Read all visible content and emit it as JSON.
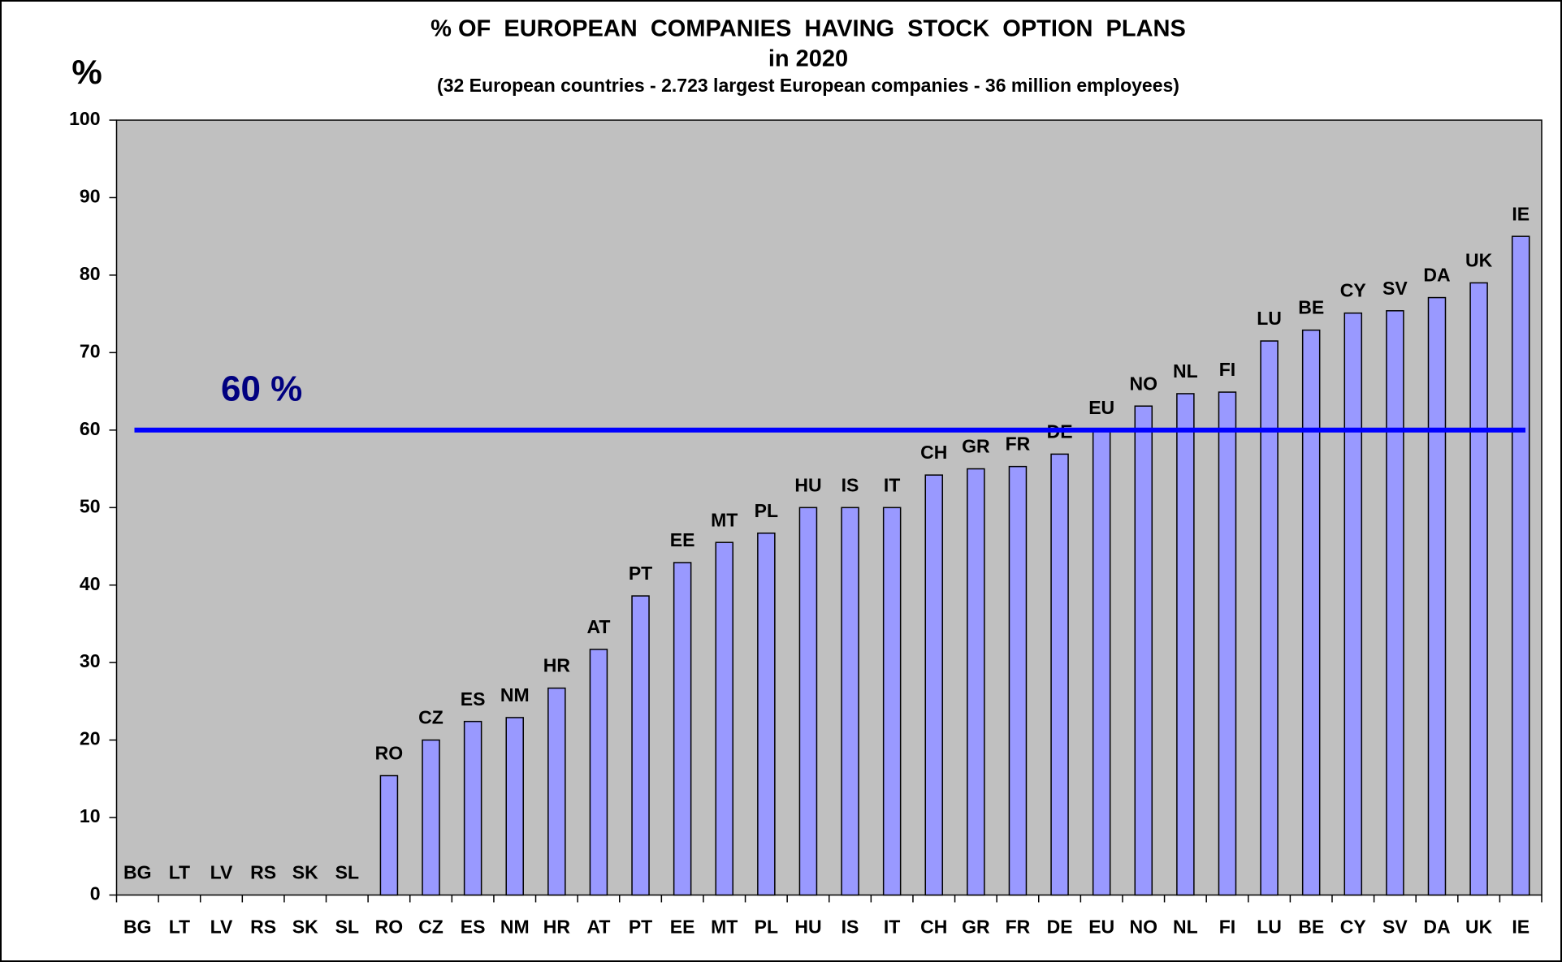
{
  "chart_data": {
    "type": "bar",
    "title": "% OF  EUROPEAN  COMPANIES  HAVING  STOCK  OPTION  PLANS",
    "title_line2": "in 2020",
    "subtitle": "(32 European countries - 2.723 largest European companies - 36 million employees)",
    "y_axis_label": "%",
    "categories": [
      "BG",
      "LT",
      "LV",
      "RS",
      "SK",
      "SL",
      "RO",
      "CZ",
      "ES",
      "NM",
      "HR",
      "AT",
      "PT",
      "EE",
      "MT",
      "PL",
      "HU",
      "IS",
      "IT",
      "CH",
      "GR",
      "FR",
      "DE",
      "EU",
      "NO",
      "NL",
      "FI",
      "LU",
      "BE",
      "CY",
      "SV",
      "DA",
      "UK",
      "IE"
    ],
    "values": [
      0,
      0,
      0,
      0,
      0,
      0,
      15.4,
      20.0,
      22.4,
      22.9,
      26.7,
      31.7,
      38.6,
      42.9,
      45.5,
      46.7,
      50,
      50,
      50,
      54.2,
      55.0,
      55.3,
      56.9,
      60,
      63.1,
      64.7,
      64.9,
      71.5,
      72.9,
      75.1,
      75.4,
      77.1,
      79.0,
      85.0
    ],
    "color": "#9999ff",
    "ylim": [
      0,
      100
    ],
    "yticks": [
      0,
      10,
      20,
      30,
      40,
      50,
      60,
      70,
      80,
      90,
      100
    ],
    "reference_line": {
      "value": 60,
      "label": "60 %",
      "color": "#0000ff"
    }
  }
}
